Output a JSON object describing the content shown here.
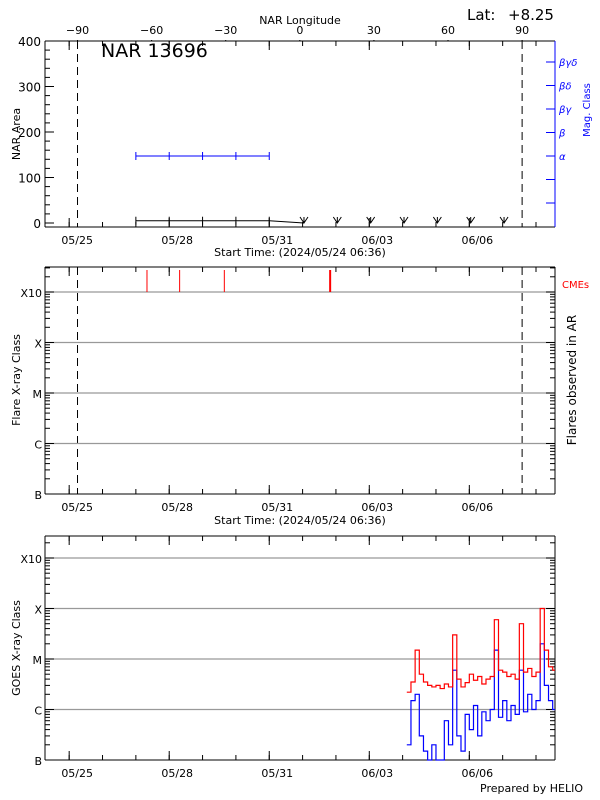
{
  "header": {
    "lat_label": "Lat:",
    "lat_value": "+8.25"
  },
  "footer": {
    "credit": "Prepared by HELIO"
  },
  "chart_data": [
    {
      "type": "line",
      "title": "NAR 13696",
      "xlabel": "Start Time: (2024/05/24 06:36)",
      "ylabel": "NAR Area",
      "y2label": "Mag. Class",
      "top_axis_label": "NAR Longitude",
      "top_axis_ticks": [
        "-90",
        "-60",
        "-30",
        "0",
        "30",
        "60",
        "90"
      ],
      "xlim": [
        "2024-05-24T06:36",
        "2024-06-08T13:40"
      ],
      "x_tick_labels": [
        "05/25",
        "05/28",
        "05/31",
        "06/03",
        "06/06"
      ],
      "x_tick_dates": [
        "2024-05-25",
        "2024-05-28",
        "2024-05-31",
        "2024-06-03",
        "2024-06-06"
      ],
      "ylim": [
        0,
        400
      ],
      "y_tick_labels": [
        "0",
        "100",
        "200",
        "300",
        "400"
      ],
      "limb_markers": [
        "2024-05-25T06:00",
        "2024-06-07T14:00"
      ],
      "mag_class_labels": [
        "α",
        "β",
        "βγ",
        "βδ",
        "βγδ"
      ],
      "series": [
        {
          "name": "NAR Area",
          "color": "#000000",
          "x": [
            "2024-05-27T00:00",
            "2024-05-28T00:00",
            "2024-05-29T00:00",
            "2024-05-30T00:00",
            "2024-05-31T00:00",
            "2024-06-01T01:00"
          ],
          "y": [
            5,
            5,
            5,
            5,
            5,
            0
          ]
        },
        {
          "name": "Mag. Class",
          "color": "#0000ff",
          "x": [
            "2024-05-27T00:00",
            "2024-05-28T00:00",
            "2024-05-29T00:00",
            "2024-05-30T00:00",
            "2024-05-31T00:00"
          ],
          "y": [
            "α",
            "α",
            "α",
            "α",
            "α"
          ]
        }
      ],
      "upper_limit_markers": [
        "2024-06-01T01:00",
        "2024-06-02T01:00",
        "2024-06-03T01:00",
        "2024-06-04T01:00",
        "2024-06-05T01:00",
        "2024-06-06T01:00",
        "2024-06-07T01:00"
      ]
    },
    {
      "type": "scatter",
      "xlabel": "Start Time: (2024/05/24 06:36)",
      "ylabel": "Flare X-ray Class",
      "y2label": "Flares observed in AR",
      "y_scale": "log",
      "y_tick_labels": [
        "B",
        "C",
        "M",
        "X",
        "X10"
      ],
      "xlim": [
        "2024-05-24T06:36",
        "2024-06-08T13:40"
      ],
      "x_tick_labels": [
        "05/25",
        "05/28",
        "05/31",
        "06/03",
        "06/06"
      ],
      "grid": true,
      "limb_markers": [
        "2024-05-25T06:00",
        "2024-06-07T14:00"
      ],
      "cme_label": "CMEs",
      "cme_color": "#ff0000",
      "cmes": [
        "2024-05-27T08:00",
        "2024-05-28T07:30",
        "2024-05-29T15:40",
        "2024-06-01T19:50"
      ],
      "flares": []
    },
    {
      "type": "line",
      "ylabel": "GOES X-ray Class",
      "y_scale": "log",
      "y_tick_labels": [
        "B",
        "C",
        "M",
        "X",
        "X10"
      ],
      "xlim": [
        "2024-05-24T06:36",
        "2024-06-08T13:40"
      ],
      "x_tick_labels": [
        "05/25",
        "05/28",
        "05/31",
        "06/03",
        "06/06"
      ],
      "grid": true,
      "x": [
        "2024-06-04T03:00",
        "2024-06-04T06:00",
        "2024-06-04T09:00",
        "2024-06-04T12:00",
        "2024-06-04T15:00",
        "2024-06-04T18:00",
        "2024-06-04T21:00",
        "2024-06-05T00:00",
        "2024-06-05T03:00",
        "2024-06-05T06:00",
        "2024-06-05T09:00",
        "2024-06-05T12:00",
        "2024-06-05T15:00",
        "2024-06-05T18:00",
        "2024-06-05T21:00",
        "2024-06-06T00:00",
        "2024-06-06T03:00",
        "2024-06-06T06:00",
        "2024-06-06T09:00",
        "2024-06-06T12:00",
        "2024-06-06T15:00",
        "2024-06-06T18:00",
        "2024-06-06T21:00",
        "2024-06-07T00:00",
        "2024-06-07T03:00",
        "2024-06-07T06:00",
        "2024-06-07T09:00",
        "2024-06-07T12:00",
        "2024-06-07T15:00",
        "2024-06-07T18:00",
        "2024-06-07T21:00",
        "2024-06-08T00:00",
        "2024-06-08T03:00",
        "2024-06-08T06:00",
        "2024-06-08T09:00",
        "2024-06-08T12:00"
      ],
      "series": [
        {
          "color": "#ff0000",
          "y": [
            2.2e-06,
            3.5e-06,
            1.5e-05,
            5e-06,
            3.5e-06,
            3e-06,
            2.8e-06,
            3e-06,
            2.6e-06,
            3.2e-06,
            2.8e-06,
            3e-05,
            4e-06,
            2.8e-06,
            3.4e-06,
            5e-06,
            3.8e-06,
            4.5e-06,
            3.2e-06,
            4e-06,
            4.5e-06,
            6e-05,
            6e-06,
            5.5e-06,
            4.5e-06,
            5e-06,
            4e-06,
            5e-05,
            5.5e-06,
            6.5e-06,
            4.5e-06,
            5.5e-06,
            0.0001,
            1.5e-05,
            7e-06,
            6e-06
          ]
        },
        {
          "color": "#0000ff",
          "y": [
            2e-07,
            1.5e-06,
            2e-06,
            3e-07,
            1.5e-07,
            5e-08,
            2e-07,
            5e-08,
            1e-07,
            6e-07,
            2e-07,
            6e-06,
            3e-07,
            1.5e-07,
            8e-07,
            4e-07,
            1.2e-06,
            3e-07,
            9e-07,
            6e-07,
            1e-06,
            1.5e-05,
            7e-07,
            1.5e-06,
            6e-07,
            1.2e-06,
            8e-07,
            6e-06,
            9e-07,
            2e-06,
            1e-06,
            1.5e-06,
            2e-05,
            3e-06,
            1.5e-06,
            1e-06
          ]
        }
      ]
    }
  ]
}
